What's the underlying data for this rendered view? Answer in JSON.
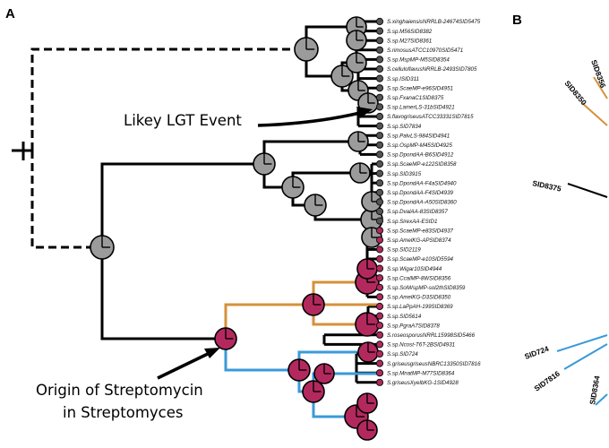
{
  "panels": {
    "a": "A",
    "b": "B"
  },
  "annotations": {
    "lgt": "Likey LGT Event",
    "origin_line1": "Origin of Streptomycin",
    "origin_line2": "in Streptomyces"
  },
  "colors": {
    "black": "#000000",
    "orange": "#d4913b",
    "blue": "#3a9ad9",
    "node_gray": "#9b9b9b",
    "node_magenta": "#b3295e"
  },
  "leaves": [
    "S.xinghaiensisNRRLB-24674SID5475",
    "S.sp.M56SID8382",
    "S.sp.M27SID8361",
    "S.rimosusATCC10970SID5471",
    "S.sp.MspMP-M5SID8354",
    "S.celluloflavusNRRLB-2493SID7805",
    "S.sp.ISID311",
    "S.sp.ScaeMP-e96SID4951",
    "S.sp.FxanaC1SID8375",
    "S.sp.LamerLS-31bSID4921",
    "S.flavogriseusATCC33331SID7815",
    "S.sp.SID7834",
    "S.sp.PalvLS-984SID4941",
    "S.sp.OspMP-M45SID4925",
    "S.sp.DpondAA-B6SID4912",
    "S.sp.ScaeMP-e122SID8358",
    "S.sp.SID3915",
    "S.sp.DpondAA-F4aSID4940",
    "S.sp.DpondAA-F4SID4939",
    "S.sp.DpondAA-A50SID8360",
    "S.sp.DvalAA-83SID8357",
    "S.sp.SirexAA-ESID1",
    "S.sp.ScaeMP-e83SID4937",
    "S.sp.AmelKG-APSID8374",
    "S.sp.SID2119",
    "S.sp.ScaeMP-e10SID5594",
    "S.sp.Wigar10SID4944",
    "S.sp.CcalMP-8WSID8356",
    "S.sp.SolWspMP-sol2thSID8359",
    "S.sp.AmelKG-D3SID8350",
    "S.sp.LaPpAH-199SID8369",
    "S.sp.SID5614",
    "S.sp.PgraA7SID8378",
    "S.roseosporusNRRL15998SID5466",
    "S.sp.Ncost-T6T-2BSID4931",
    "S.sp.SID724",
    "S.griseusgriseusNBRC13350SID7816",
    "S.sp.MnatMP-M77SID8364",
    "S.griseusXyelbKG-1SID4928"
  ],
  "panel_b_labels": [
    "SID8356",
    "SID8350",
    "SID8375",
    "SID724",
    "SID7816",
    "SID8364"
  ]
}
